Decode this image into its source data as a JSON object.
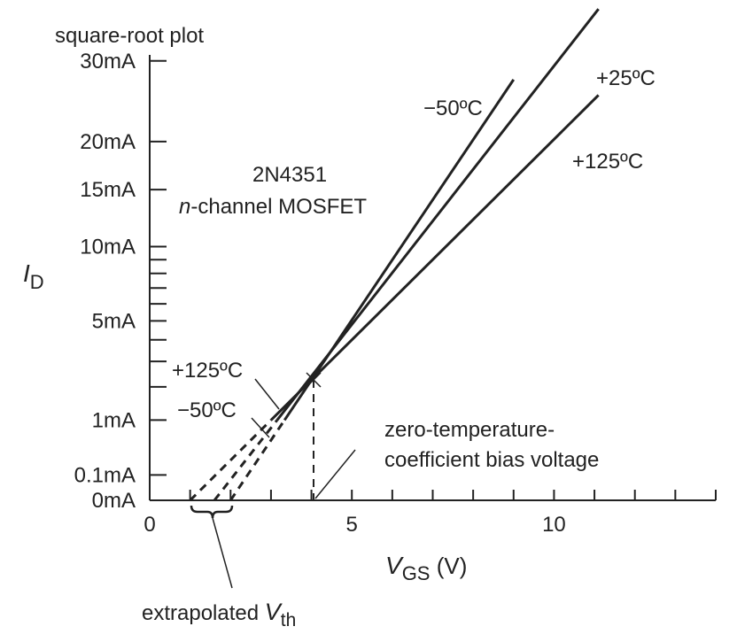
{
  "chart_data": {
    "type": "line",
    "title": "square-root plot",
    "device": [
      "2N4351",
      "n-channel MOSFET"
    ],
    "xlabel": "V_GS (V)",
    "xlabel_parts": [
      "V",
      "GS",
      " (V)"
    ],
    "ylabel": "I_D",
    "ylabel_parts": [
      "I",
      "D"
    ],
    "xlim": [
      0,
      14
    ],
    "x_ticks": [
      0,
      5,
      10
    ],
    "x_minor_step": 1,
    "y_scale": "sqrt",
    "y_unit": "mA",
    "ylim": [
      0,
      39
    ],
    "y_tick_labels": [
      {
        "value": 0,
        "label": "0mA"
      },
      {
        "value": 0.1,
        "label": "0.1mA"
      },
      {
        "value": 1,
        "label": "1mA"
      },
      {
        "value": 5,
        "label": "5mA"
      },
      {
        "value": 10,
        "label": "10mA"
      },
      {
        "value": 15,
        "label": "15mA"
      },
      {
        "value": 20,
        "label": "20mA"
      },
      {
        "value": 30,
        "label": "30mA"
      }
    ],
    "y_minor_ticks": [
      2,
      3,
      4,
      6,
      7,
      8,
      9
    ],
    "series": [
      {
        "name": "−50ºC",
        "x": [
          2.0,
          9.0
        ],
        "y": [
          0,
          27.5
        ]
      },
      {
        "name": "+25ºC",
        "x": [
          1.6,
          11.1
        ],
        "y": [
          0,
          37.5
        ]
      },
      {
        "name": "+125ºC",
        "x": [
          1.0,
          11.1
        ],
        "y": [
          0,
          25.5
        ]
      }
    ],
    "crossover": {
      "x": 4.1,
      "y": 2.2
    },
    "annotations": {
      "neg50_top": "−50ºC",
      "pos25_top": "+25ºC",
      "pos125_top": "+125ºC",
      "pos125_low": "+125ºC",
      "neg50_low": "−50ºC",
      "ztc": [
        "zero-temperature-",
        "coefficient bias voltage"
      ],
      "vth": [
        "extrapolated ",
        "V",
        "th"
      ]
    }
  }
}
